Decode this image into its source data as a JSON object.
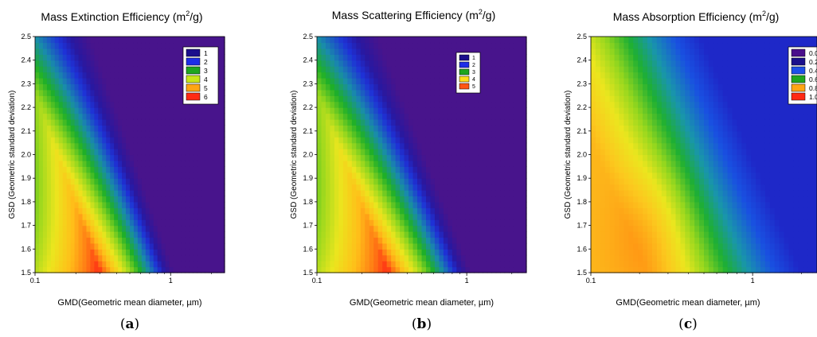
{
  "chart_data": [
    {
      "type": "heatmap",
      "title_main": "Mass Extinction Efficiency (m",
      "title_sup": "2",
      "title_end": "/g)",
      "xlabel": "GMD(Geometric mean diameter, µm)",
      "ylabel": "GSD (Geometric standard deviation)",
      "x_scale": "log",
      "xlim": [
        0.1,
        2.5
      ],
      "ylim": [
        1.5,
        2.5
      ],
      "x_ticks": [
        {
          "value": 0.1,
          "label": "0.1"
        },
        {
          "value": 1,
          "label": "1"
        }
      ],
      "y_ticks": [
        "1.5",
        "1.6",
        "1.7",
        "1.8",
        "1.9",
        "2.0",
        "2.1",
        "2.2",
        "2.3",
        "2.4",
        "2.5"
      ],
      "legend_position": "top-right",
      "legend": [
        "1",
        "2",
        "3",
        "4",
        "5",
        "6"
      ],
      "legend_colors": [
        "#1b0f8c",
        "#1e2ee8",
        "#1fa61f",
        "#c8e61a",
        "#ffa514",
        "#ff2a14"
      ],
      "peak_gmd": 0.3,
      "peak_gsd": 1.5,
      "peak_value": 6.4,
      "panel_label": "a"
    },
    {
      "type": "heatmap",
      "title_main": "Mass Scattering Efficiency (m",
      "title_sup": "2",
      "title_end": "/g)",
      "xlabel": "GMD(Geometric mean diameter, µm)",
      "ylabel": "GSD (Geometric standard deviation)",
      "x_scale": "log",
      "xlim": [
        0.1,
        2.5
      ],
      "ylim": [
        1.5,
        2.5
      ],
      "x_ticks": [
        {
          "value": 0.1,
          "label": "0.1"
        },
        {
          "value": 1,
          "label": "1"
        }
      ],
      "y_ticks": [
        "1.5",
        "1.6",
        "1.7",
        "1.8",
        "1.9",
        "2.0",
        "2.1",
        "2.2",
        "2.3",
        "2.4",
        "2.5"
      ],
      "legend_position": "top-right",
      "legend": [
        "1",
        "2",
        "3",
        "4",
        "5"
      ],
      "legend_colors": [
        "#1b0f8c",
        "#1e2ee8",
        "#1fa61f",
        "#ffdd1a",
        "#ff5514"
      ],
      "peak_gmd": 0.3,
      "peak_gsd": 1.5,
      "peak_value": 5.4,
      "panel_label": "b"
    },
    {
      "type": "heatmap",
      "title_main": "Mass Absorption Efficiency (m",
      "title_sup": "2",
      "title_end": "/g)",
      "xlabel": "GMD(Geometric mean diameter, µm)",
      "ylabel": "GSD (Geometric standard deviation)",
      "x_scale": "log",
      "xlim": [
        0.1,
        2.5
      ],
      "ylim": [
        1.5,
        2.5
      ],
      "x_ticks": [
        {
          "value": 0.1,
          "label": "0.1"
        },
        {
          "value": 1,
          "label": "1"
        }
      ],
      "y_ticks": [
        "1.5",
        "1.6",
        "1.7",
        "1.8",
        "1.9",
        "2.0",
        "2.1",
        "2.2",
        "2.3",
        "2.4",
        "2.5"
      ],
      "legend_position": "top-right",
      "legend": [
        "0.0",
        "0.2",
        "0.4",
        "0.6",
        "0.8",
        "1.0"
      ],
      "legend_colors": [
        "#4a0f8c",
        "#1b0f8c",
        "#1e4ee8",
        "#1fa61f",
        "#ffa514",
        "#ff2a14"
      ],
      "peak_gmd": 0.2,
      "peak_gsd": 1.6,
      "peak_value": 0.9,
      "panel_label": "c"
    }
  ]
}
